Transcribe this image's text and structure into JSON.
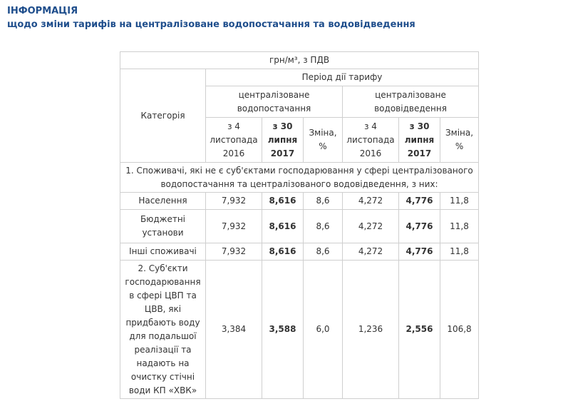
{
  "heading": {
    "line1": "ІНФОРМАЦІЯ",
    "line2": "щодо зміни тарифів на централізоване водопостачання та водовідведення"
  },
  "table": {
    "unit": "грн/м³, з ПДВ",
    "category_header": "Категорія",
    "period_header": "Період дії тарифу",
    "groups": [
      "централізоване водопостачання",
      "централізоване водовідведення"
    ],
    "columns": [
      "з 4 листопада 2016",
      "з 30 липня 2017",
      "Зміна, %"
    ],
    "section1": "1. Споживачі, які не є суб'єктами господарювання у сфері централізованого водопостачання та  централізованого водовідведення, з них:",
    "rows": [
      {
        "category": "Населення",
        "values": [
          "7,932",
          "8,616",
          "8,6",
          "4,272",
          "4,776",
          "11,8"
        ]
      },
      {
        "category": "Бюджетні установи",
        "values": [
          "7,932",
          "8,616",
          "8,6",
          "4,272",
          "4,776",
          "11,8"
        ]
      },
      {
        "category": "Інші споживачі",
        "values": [
          "7,932",
          "8,616",
          "8,6",
          "4,272",
          "4,776",
          "11,8"
        ]
      },
      {
        "category": "2. Суб'єкти господарювання в сфері ЦВП та ЦВВ, які придбають воду для подальшої реалізації та надають на очистку стічні води КП «ХВК»",
        "values": [
          "3,384",
          "3,588",
          "6,0",
          "1,236",
          "2,556",
          "106,8"
        ]
      }
    ]
  }
}
